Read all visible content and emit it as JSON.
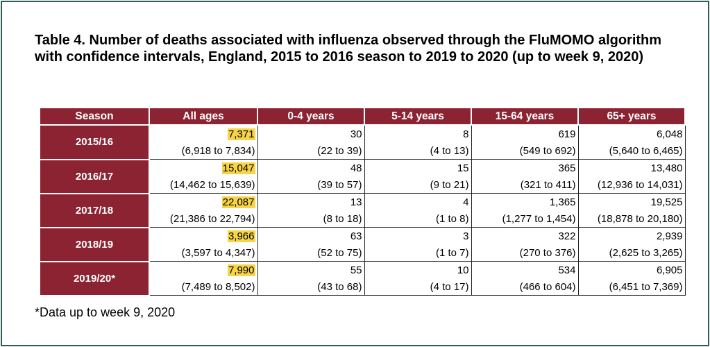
{
  "title": "Table 4. Number of deaths associated with influenza observed through the FluMOMO algorithm with confidence intervals, England, 2015 to 2016 season to 2019 to 2020 (up to week 9, 2020)",
  "headers": [
    "Season",
    "All ages",
    "0-4 years",
    "5-14 years",
    "15-64 years",
    "65+ years"
  ],
  "highlight_color": "#f7d447",
  "header_color": "#8b2332",
  "rows": [
    {
      "season": "2015/16",
      "values": [
        "7,371",
        "30",
        "8",
        "619",
        "6,048"
      ],
      "cis": [
        "(6,918 to 7,834)",
        "(22 to 39)",
        "(4 to 13)",
        "(549 to 692)",
        "(5,640 to 6,465)"
      ]
    },
    {
      "season": "2016/17",
      "values": [
        "15,047",
        "48",
        "15",
        "365",
        "13,480"
      ],
      "cis": [
        "(14,462 to 15,639)",
        "(39 to 57)",
        "(9 to 21)",
        "(321 to 411)",
        "(12,936 to 14,031)"
      ]
    },
    {
      "season": "2017/18",
      "values": [
        "22,087",
        "13",
        "4",
        "1,365",
        "19,525"
      ],
      "cis": [
        "(21,386 to 22,794)",
        "(8 to 18)",
        "(1 to 8)",
        "(1,277 to 1,454)",
        "(18,878 to 20,180)"
      ]
    },
    {
      "season": "2018/19",
      "values": [
        "3,966",
        "63",
        "3",
        "322",
        "2,939"
      ],
      "cis": [
        "(3,597 to 4,347)",
        "(52 to 75)",
        "(1 to 7)",
        "(270 to 376)",
        "(2,625 to 3,265)"
      ]
    },
    {
      "season": "2019/20*",
      "values": [
        "7,990",
        "55",
        "10",
        "534",
        "6,905"
      ],
      "cis": [
        "(7,489 to 8,502)",
        "(43 to 68)",
        "(4 to 17)",
        "(466 to 604)",
        "(6,451 to 7,369)"
      ]
    }
  ],
  "footnote": "*Data up to week 9, 2020"
}
